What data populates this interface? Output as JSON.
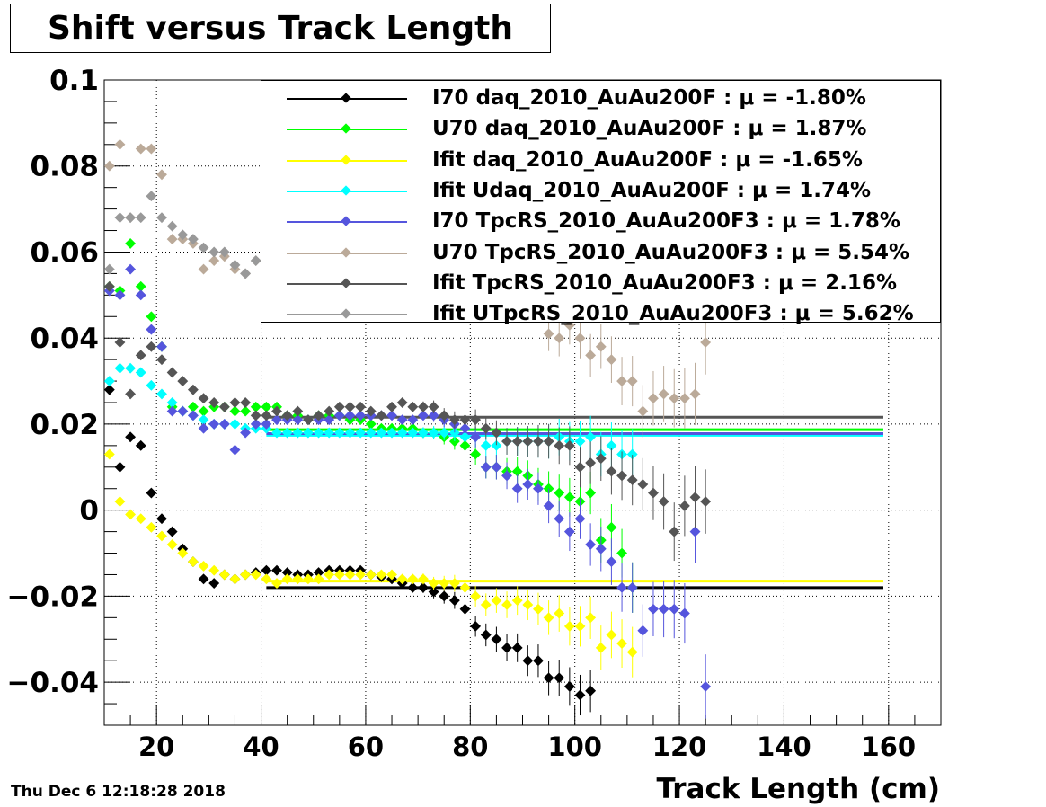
{
  "title": "Shift versus Track Length",
  "date_stamp": "Thu Dec  6 12:18:28 2018",
  "chart_data": {
    "type": "scatter",
    "title": "Shift versus Track Length",
    "xlabel": "Track Length (cm)",
    "ylabel": "",
    "xlim": [
      10,
      170
    ],
    "ylim": [
      -0.05,
      0.1
    ],
    "x_ticks": [
      20,
      40,
      60,
      80,
      100,
      120,
      140,
      160
    ],
    "x_tick_labels": [
      "20",
      "40",
      "60",
      "80",
      "100",
      "120",
      "140",
      "160"
    ],
    "y_ticks": [
      -0.04,
      -0.02,
      0,
      0.02,
      0.04,
      0.06,
      0.08,
      0.1
    ],
    "y_tick_labels": [
      "−0.04",
      "−0.02",
      "0",
      "0.02",
      "0.04",
      "0.06",
      "0.08",
      "0.1"
    ],
    "grid": true,
    "legend_position": "top-right",
    "series": [
      {
        "name": "I70  daq_2010_AuAu200F",
        "mu_text": "μ = -1.80%",
        "color": "#000000",
        "fit": -0.018,
        "x": [
          11,
          13,
          15,
          17,
          19,
          21,
          23,
          25,
          27,
          29,
          31,
          33,
          35,
          37,
          39,
          41,
          43,
          45,
          47,
          49,
          51,
          53,
          55,
          57,
          59,
          61,
          63,
          65,
          67,
          69,
          71,
          73,
          75,
          77,
          79,
          81,
          83,
          85,
          87,
          89,
          91,
          93,
          95,
          97,
          99,
          101,
          103
        ],
        "y": [
          0.028,
          0.01,
          0.017,
          0.015,
          0.004,
          -0.002,
          -0.005,
          -0.009,
          -0.012,
          -0.016,
          -0.017,
          -0.015,
          -0.016,
          -0.015,
          -0.0145,
          -0.014,
          -0.014,
          -0.0145,
          -0.015,
          -0.015,
          -0.0145,
          -0.014,
          -0.014,
          -0.014,
          -0.014,
          -0.015,
          -0.0155,
          -0.016,
          -0.017,
          -0.018,
          -0.018,
          -0.019,
          -0.02,
          -0.021,
          -0.023,
          -0.027,
          -0.029,
          -0.03,
          -0.032,
          -0.032,
          -0.035,
          -0.035,
          -0.039,
          -0.039,
          -0.041,
          -0.043,
          -0.042
        ]
      },
      {
        "name": "U70  daq_2010_AuAu200F",
        "mu_text": "μ =  1.87%",
        "color": "#00ff00",
        "fit": 0.0187,
        "x": [
          11,
          13,
          15,
          17,
          19,
          21,
          23,
          25,
          27,
          29,
          31,
          33,
          35,
          37,
          39,
          41,
          43,
          45,
          47,
          49,
          51,
          53,
          55,
          57,
          59,
          61,
          63,
          65,
          67,
          69,
          71,
          73,
          75,
          77,
          79,
          81,
          83,
          85,
          87,
          89,
          91,
          93,
          95,
          97,
          99,
          101,
          103,
          105,
          107,
          109,
          111
        ],
        "y": [
          0.052,
          0.051,
          0.062,
          0.052,
          0.045,
          0.038,
          0.024,
          0.023,
          0.024,
          0.023,
          0.024,
          0.024,
          0.023,
          0.023,
          0.024,
          0.024,
          0.024,
          0.022,
          0.022,
          0.021,
          0.022,
          0.022,
          0.022,
          0.021,
          0.021,
          0.02,
          0.019,
          0.019,
          0.019,
          0.019,
          0.018,
          0.018,
          0.017,
          0.016,
          0.015,
          0.013,
          0.01,
          0.01,
          0.009,
          0.009,
          0.008,
          0.006,
          0.005,
          0.004,
          0.003,
          0.002,
          0.004,
          -0.007,
          -0.004,
          -0.01,
          -0.018
        ]
      },
      {
        "name": "Ifit daq_2010_AuAu200F",
        "mu_text": "μ = -1.65%",
        "color": "#ffff00",
        "fit": -0.0165,
        "x": [
          11,
          13,
          15,
          17,
          19,
          21,
          23,
          25,
          27,
          29,
          31,
          33,
          35,
          37,
          39,
          41,
          43,
          45,
          47,
          49,
          51,
          53,
          55,
          57,
          59,
          61,
          63,
          65,
          67,
          69,
          71,
          73,
          75,
          77,
          79,
          81,
          83,
          85,
          87,
          89,
          91,
          93,
          95,
          97,
          99,
          101,
          103,
          105,
          107,
          109,
          111
        ],
        "y": [
          0.013,
          0.002,
          -0.001,
          -0.002,
          -0.004,
          -0.006,
          -0.008,
          -0.01,
          -0.012,
          -0.013,
          -0.014,
          -0.015,
          -0.016,
          -0.015,
          -0.015,
          -0.016,
          -0.017,
          -0.016,
          -0.016,
          -0.016,
          -0.016,
          -0.015,
          -0.015,
          -0.015,
          -0.015,
          -0.015,
          -0.015,
          -0.015,
          -0.016,
          -0.016,
          -0.016,
          -0.017,
          -0.017,
          -0.017,
          -0.018,
          -0.02,
          -0.022,
          -0.021,
          -0.022,
          -0.021,
          -0.022,
          -0.023,
          -0.025,
          -0.024,
          -0.027,
          -0.027,
          -0.025,
          -0.032,
          -0.029,
          -0.031,
          -0.033
        ]
      },
      {
        "name": "Ifit Udaq_2010_AuAu200F",
        "mu_text": "μ =  1.74%",
        "color": "#00ffff",
        "fit": 0.0174,
        "x": [
          11,
          13,
          15,
          17,
          19,
          21,
          23,
          25,
          27,
          29,
          31,
          33,
          35,
          37,
          39,
          41,
          43,
          45,
          47,
          49,
          51,
          53,
          55,
          57,
          59,
          61,
          63,
          65,
          67,
          69,
          71,
          73,
          75,
          77,
          79,
          81,
          83,
          85,
          87,
          89,
          91,
          93,
          95,
          97,
          99,
          101,
          103,
          105,
          107,
          109,
          111
        ],
        "y": [
          0.03,
          0.033,
          0.033,
          0.032,
          0.029,
          0.027,
          0.025,
          0.023,
          0.022,
          0.021,
          0.02,
          0.02,
          0.02,
          0.019,
          0.019,
          0.019,
          0.018,
          0.018,
          0.018,
          0.018,
          0.018,
          0.018,
          0.018,
          0.018,
          0.018,
          0.018,
          0.018,
          0.018,
          0.018,
          0.018,
          0.018,
          0.018,
          0.018,
          0.018,
          0.017,
          0.017,
          0.015,
          0.015,
          0.016,
          0.016,
          0.016,
          0.016,
          0.016,
          0.017,
          0.016,
          0.016,
          0.017,
          0.013,
          0.015,
          0.013,
          0.013
        ]
      },
      {
        "name": "I70  TpcRS_2010_AuAu200F3",
        "mu_text": "μ =  1.78%",
        "color": "#5555dd",
        "fit": 0.0178,
        "x": [
          11,
          13,
          15,
          17,
          19,
          21,
          23,
          25,
          27,
          29,
          31,
          33,
          35,
          37,
          39,
          41,
          43,
          45,
          47,
          49,
          51,
          53,
          55,
          57,
          59,
          61,
          63,
          65,
          67,
          69,
          71,
          73,
          75,
          77,
          79,
          81,
          83,
          85,
          87,
          89,
          91,
          93,
          95,
          97,
          99,
          101,
          103,
          105,
          107,
          109,
          111,
          113,
          115,
          117,
          119,
          121,
          123,
          125
        ],
        "y": [
          0.051,
          0.05,
          0.056,
          0.05,
          0.042,
          0.038,
          0.023,
          0.023,
          0.022,
          0.019,
          0.02,
          0.02,
          0.014,
          0.018,
          0.02,
          0.02,
          0.021,
          0.021,
          0.021,
          0.021,
          0.021,
          0.021,
          0.022,
          0.022,
          0.022,
          0.022,
          0.022,
          0.022,
          0.021,
          0.021,
          0.022,
          0.022,
          0.021,
          0.02,
          0.019,
          0.017,
          0.01,
          0.01,
          0.008,
          0.005,
          0.006,
          0.005,
          0.001,
          -0.002,
          -0.005,
          -0.002,
          -0.008,
          -0.009,
          -0.012,
          -0.018,
          -0.018,
          -0.028,
          -0.023,
          -0.023,
          -0.023,
          -0.024,
          -0.005,
          -0.041
        ]
      },
      {
        "name": "U70  TpcRS_2010_AuAu200F3",
        "mu_text": "μ =  5.54%",
        "color": "#bbaa99",
        "fit": null,
        "x": [
          11,
          13,
          15,
          17,
          19,
          21,
          23,
          25,
          27,
          29,
          31,
          33,
          35,
          37,
          39,
          95,
          97,
          99,
          101,
          103,
          105,
          107,
          109,
          111,
          113,
          115,
          117,
          119,
          121,
          123,
          125
        ],
        "y": [
          0.08,
          0.085,
          0.068,
          0.084,
          0.084,
          0.078,
          0.063,
          0.063,
          0.062,
          0.056,
          0.058,
          0.059,
          0.056,
          0.055,
          0.058,
          0.041,
          0.04,
          0.043,
          0.04,
          0.036,
          0.038,
          0.035,
          0.03,
          0.03,
          0.023,
          0.026,
          0.027,
          0.026,
          0.026,
          0.027,
          0.039
        ]
      },
      {
        "name": "Ifit TpcRS_2010_AuAu200F3",
        "mu_text": "μ =  2.16%",
        "color": "#555555",
        "fit": 0.0216,
        "x": [
          11,
          13,
          15,
          17,
          19,
          21,
          23,
          25,
          27,
          29,
          31,
          33,
          35,
          37,
          39,
          41,
          43,
          45,
          47,
          49,
          51,
          53,
          55,
          57,
          59,
          61,
          63,
          65,
          67,
          69,
          71,
          73,
          75,
          77,
          79,
          81,
          83,
          85,
          87,
          89,
          91,
          93,
          95,
          97,
          99,
          101,
          103,
          105,
          107,
          109,
          111,
          113,
          115,
          117,
          119,
          121,
          123,
          125
        ],
        "y": [
          0.052,
          0.039,
          0.027,
          0.036,
          0.038,
          0.035,
          0.032,
          0.03,
          0.028,
          0.026,
          0.025,
          0.024,
          0.025,
          0.025,
          0.022,
          0.022,
          0.023,
          0.022,
          0.023,
          0.021,
          0.022,
          0.023,
          0.024,
          0.024,
          0.024,
          0.023,
          0.022,
          0.024,
          0.025,
          0.024,
          0.024,
          0.024,
          0.022,
          0.021,
          0.021,
          0.021,
          0.019,
          0.018,
          0.016,
          0.016,
          0.016,
          0.016,
          0.016,
          0.015,
          0.015,
          0.01,
          0.011,
          0.012,
          0.009,
          0.008,
          0.007,
          0.006,
          0.004,
          0.002,
          -0.005,
          0.001,
          0.003,
          0.002
        ]
      },
      {
        "name": "Ifit UTpcRS_2010_AuAu200F3",
        "mu_text": "μ =  5.62%",
        "color": "#999999",
        "fit": null,
        "x": [
          11,
          13,
          15,
          17,
          19,
          21,
          23,
          25,
          27,
          29,
          31,
          33,
          35,
          37,
          39
        ],
        "y": [
          0.056,
          0.068,
          0.068,
          0.068,
          0.073,
          0.068,
          0.066,
          0.064,
          0.063,
          0.061,
          0.06,
          0.06,
          0.057,
          0.055,
          0.058
        ]
      }
    ]
  }
}
